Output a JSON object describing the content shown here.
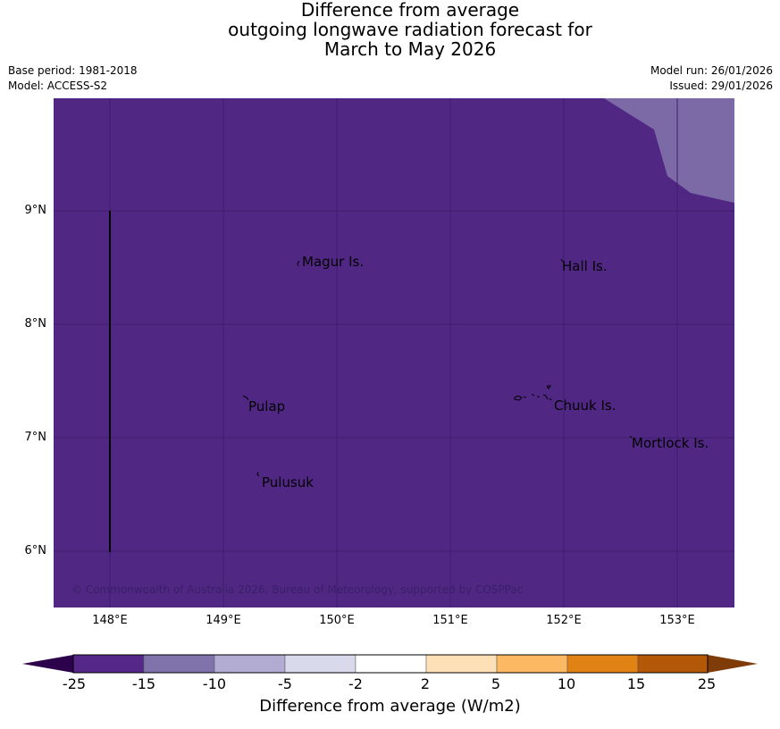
{
  "title": {
    "line1": "Difference from average",
    "line2": "outgoing longwave radiation forecast for",
    "line3": "March to May 2026"
  },
  "meta": {
    "base_period": "Base period: 1981-2018",
    "model": "Model: ACCESS-S2",
    "model_run": "Model run: 26/01/2026",
    "issued": "Issued: 29/01/2026"
  },
  "map": {
    "lat_ticks": [
      "9°N",
      "8°N",
      "7°N",
      "6°N"
    ],
    "lon_ticks": [
      "148°E",
      "149°E",
      "150°E",
      "151°E",
      "152°E",
      "153°E"
    ],
    "places": [
      {
        "name": "Magur Is.",
        "lat": 8.56,
        "lon": 149.68
      },
      {
        "name": "Hall Is.",
        "lat": 8.52,
        "lon": 151.98
      },
      {
        "name": "Pulap",
        "lat": 7.3,
        "lon": 149.2
      },
      {
        "name": "Chuuk Is.",
        "lat": 7.3,
        "lon": 151.88
      },
      {
        "name": "Mortlock Is.",
        "lat": 6.97,
        "lon": 152.6
      },
      {
        "name": "Pulusuk",
        "lat": 6.63,
        "lon": 149.31
      }
    ],
    "credit": "© Commonwealth of Australia 2026, Bureau of Meteorology, supported by COSPPac",
    "background_class_color": "#512784",
    "upper_right_class_color": "#7c6aa7"
  },
  "colorbar": {
    "title": "Difference from average (W/m2)",
    "labels": [
      "-25",
      "-15",
      "-10",
      "-5",
      "-2",
      "2",
      "5",
      "10",
      "15",
      "25"
    ],
    "colors": [
      "#2d004b",
      "#542788",
      "#8073ac",
      "#b2abd2",
      "#d8daeb",
      "#ffffff",
      "#fee0b6",
      "#fdb863",
      "#e08214",
      "#b35806",
      "#7f3b08"
    ]
  }
}
